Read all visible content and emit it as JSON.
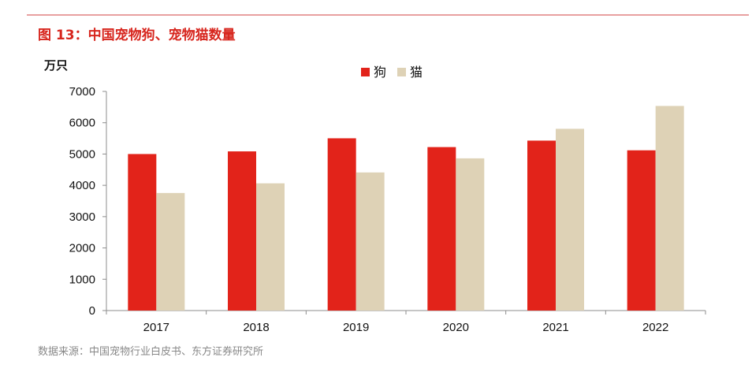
{
  "header": {
    "title": "图 13：中国宠物狗、宠物猫数量"
  },
  "footer": {
    "source": "数据来源：中国宠物行业白皮书、东方证券研究所"
  },
  "colors": {
    "dog": "#e2231a",
    "cat": "#ded2b6",
    "axis": "#8c8c8c",
    "accent": "#d7261e"
  },
  "chart_data": {
    "type": "bar",
    "title": "图 13：中国宠物狗、宠物猫数量",
    "ylabel": "万只",
    "xlabel": "",
    "categories": [
      "2017",
      "2018",
      "2019",
      "2020",
      "2021",
      "2022"
    ],
    "series": [
      {
        "name": "狗",
        "values": [
          5000,
          5085,
          5503,
          5222,
          5429,
          5119
        ]
      },
      {
        "name": "猫",
        "values": [
          3756,
          4064,
          4412,
          4862,
          5806,
          6536
        ]
      }
    ],
    "ylim": [
      0,
      7000
    ],
    "yticks": [
      0,
      1000,
      2000,
      3000,
      4000,
      5000,
      6000,
      7000
    ],
    "legend": "top-center",
    "grid": false
  }
}
